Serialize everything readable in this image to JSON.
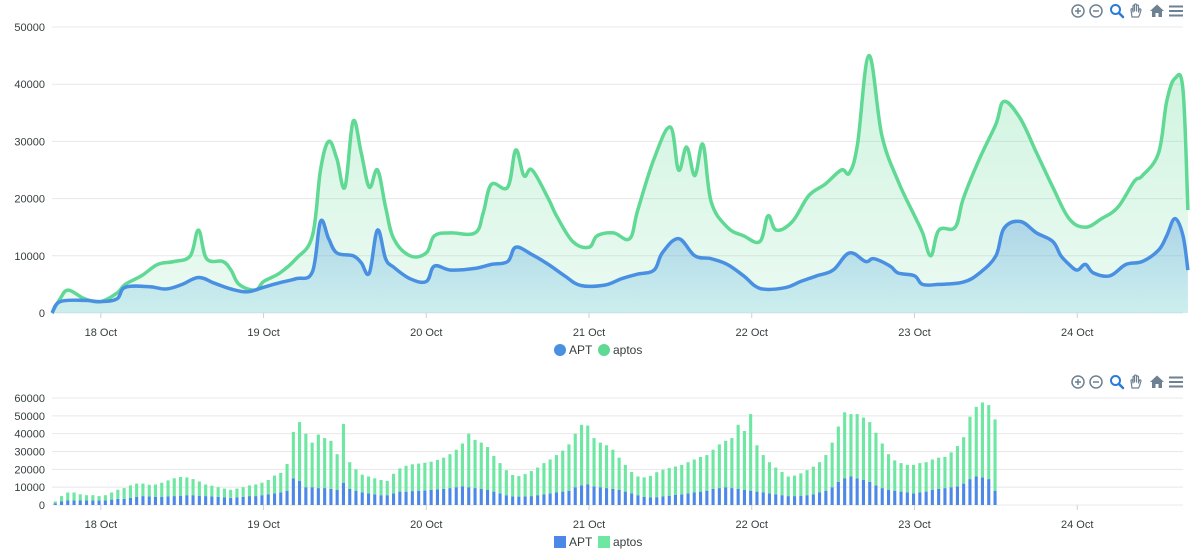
{
  "colors": {
    "apt": "#4a90e2",
    "aptos": "#5fd994",
    "apt_bar": "#4d88e8",
    "aptos_bar": "#6ee7a3",
    "grid": "#e8e8e8",
    "axis_text": "#373d3f",
    "icon": "#6e8192"
  },
  "toolbar": {
    "icons": [
      "zoom-in-icon",
      "zoom-out-icon",
      "selection-zoom-icon",
      "pan-hand-icon",
      "reset-home-icon",
      "menu-icon"
    ]
  },
  "chart_data": [
    {
      "type": "area",
      "title": "",
      "xlabel": "",
      "ylabel": "",
      "x_ticks": [
        "18 Oct",
        "19 Oct",
        "20 Oct",
        "21 Oct",
        "22 Oct",
        "23 Oct",
        "24 Oct"
      ],
      "y_ticks": [
        "0",
        "10000",
        "20000",
        "30000",
        "40000",
        "50000"
      ],
      "ylim": [
        0,
        50000
      ],
      "xlim_days": [
        -0.3,
        6.65
      ],
      "grid": true,
      "legend": "bottom-center",
      "series": [
        {
          "name": "APT",
          "color": "#4a90e2",
          "points": [
            [
              -0.3,
              0
            ],
            [
              -0.25,
              2000
            ],
            [
              -0.1,
              2200
            ],
            [
              0.0,
              2000
            ],
            [
              0.1,
              2500
            ],
            [
              0.15,
              4500
            ],
            [
              0.3,
              4600
            ],
            [
              0.4,
              4200
            ],
            [
              0.5,
              5000
            ],
            [
              0.6,
              6200
            ],
            [
              0.7,
              5200
            ],
            [
              0.8,
              4200
            ],
            [
              0.9,
              3700
            ],
            [
              1.0,
              4500
            ],
            [
              1.1,
              5300
            ],
            [
              1.2,
              6000
            ],
            [
              1.3,
              7200
            ],
            [
              1.35,
              16000
            ],
            [
              1.4,
              13000
            ],
            [
              1.45,
              10500
            ],
            [
              1.55,
              10000
            ],
            [
              1.6,
              8800
            ],
            [
              1.65,
              7000
            ],
            [
              1.7,
              14500
            ],
            [
              1.75,
              9500
            ],
            [
              1.8,
              8000
            ],
            [
              1.9,
              6000
            ],
            [
              2.0,
              5500
            ],
            [
              2.05,
              8200
            ],
            [
              2.15,
              7500
            ],
            [
              2.3,
              7800
            ],
            [
              2.4,
              8500
            ],
            [
              2.5,
              9000
            ],
            [
              2.55,
              11500
            ],
            [
              2.65,
              10200
            ],
            [
              2.75,
              8500
            ],
            [
              2.85,
              6500
            ],
            [
              2.95,
              4800
            ],
            [
              3.1,
              4900
            ],
            [
              3.2,
              6000
            ],
            [
              3.3,
              6800
            ],
            [
              3.4,
              7500
            ],
            [
              3.45,
              10500
            ],
            [
              3.55,
              13000
            ],
            [
              3.65,
              10000
            ],
            [
              3.75,
              9500
            ],
            [
              3.85,
              8500
            ],
            [
              3.95,
              6500
            ],
            [
              4.05,
              4300
            ],
            [
              4.2,
              4400
            ],
            [
              4.3,
              5500
            ],
            [
              4.4,
              6500
            ],
            [
              4.5,
              7500
            ],
            [
              4.6,
              10500
            ],
            [
              4.7,
              9000
            ],
            [
              4.75,
              9500
            ],
            [
              4.85,
              8200
            ],
            [
              4.9,
              7000
            ],
            [
              5.0,
              6500
            ],
            [
              5.05,
              5000
            ],
            [
              5.15,
              5000
            ],
            [
              5.3,
              5400
            ],
            [
              5.4,
              7000
            ],
            [
              5.5,
              10000
            ],
            [
              5.55,
              14800
            ],
            [
              5.65,
              16000
            ],
            [
              5.75,
              14000
            ],
            [
              5.85,
              12500
            ],
            [
              5.9,
              10000
            ],
            [
              5.95,
              8500
            ],
            [
              6.0,
              7500
            ],
            [
              6.05,
              8500
            ],
            [
              6.1,
              7000
            ],
            [
              6.2,
              6500
            ],
            [
              6.3,
              8500
            ],
            [
              6.4,
              9000
            ],
            [
              6.5,
              11000
            ],
            [
              6.55,
              13500
            ],
            [
              6.6,
              16500
            ],
            [
              6.65,
              13500
            ],
            [
              6.68,
              7500
            ]
          ]
        },
        {
          "name": "aptos",
          "color": "#5fd994",
          "points": [
            [
              -0.3,
              0
            ],
            [
              -0.25,
              2500
            ],
            [
              -0.2,
              4000
            ],
            [
              -0.1,
              2500
            ],
            [
              0.0,
              2000
            ],
            [
              0.1,
              3500
            ],
            [
              0.15,
              5000
            ],
            [
              0.25,
              6500
            ],
            [
              0.35,
              8500
            ],
            [
              0.45,
              9000
            ],
            [
              0.55,
              10000
            ],
            [
              0.6,
              14500
            ],
            [
              0.65,
              9500
            ],
            [
              0.75,
              9000
            ],
            [
              0.8,
              7500
            ],
            [
              0.85,
              5000
            ],
            [
              0.95,
              4000
            ],
            [
              1.0,
              5500
            ],
            [
              1.1,
              7000
            ],
            [
              1.2,
              9500
            ],
            [
              1.3,
              13500
            ],
            [
              1.35,
              25000
            ],
            [
              1.4,
              30000
            ],
            [
              1.45,
              27000
            ],
            [
              1.5,
              22000
            ],
            [
              1.55,
              33500
            ],
            [
              1.6,
              28000
            ],
            [
              1.65,
              22000
            ],
            [
              1.7,
              25000
            ],
            [
              1.75,
              18500
            ],
            [
              1.8,
              13000
            ],
            [
              1.9,
              10000
            ],
            [
              2.0,
              10500
            ],
            [
              2.05,
              13500
            ],
            [
              2.15,
              14000
            ],
            [
              2.3,
              14000
            ],
            [
              2.35,
              17500
            ],
            [
              2.4,
              22500
            ],
            [
              2.5,
              22000
            ],
            [
              2.55,
              28500
            ],
            [
              2.6,
              24000
            ],
            [
              2.65,
              25000
            ],
            [
              2.75,
              20000
            ],
            [
              2.8,
              17000
            ],
            [
              2.9,
              12500
            ],
            [
              3.0,
              11500
            ],
            [
              3.05,
              13500
            ],
            [
              3.15,
              14000
            ],
            [
              3.25,
              13000
            ],
            [
              3.3,
              18000
            ],
            [
              3.4,
              27000
            ],
            [
              3.5,
              32500
            ],
            [
              3.55,
              25000
            ],
            [
              3.6,
              29000
            ],
            [
              3.65,
              24000
            ],
            [
              3.7,
              29500
            ],
            [
              3.75,
              19500
            ],
            [
              3.85,
              15000
            ],
            [
              3.95,
              13500
            ],
            [
              4.05,
              12500
            ],
            [
              4.1,
              17000
            ],
            [
              4.15,
              14500
            ],
            [
              4.25,
              16000
            ],
            [
              4.35,
              20500
            ],
            [
              4.45,
              22500
            ],
            [
              4.55,
              25000
            ],
            [
              4.6,
              24500
            ],
            [
              4.65,
              29500
            ],
            [
              4.72,
              45000
            ],
            [
              4.8,
              31000
            ],
            [
              4.9,
              23000
            ],
            [
              5.0,
              17000
            ],
            [
              5.05,
              14000
            ],
            [
              5.1,
              10000
            ],
            [
              5.15,
              14500
            ],
            [
              5.25,
              15000
            ],
            [
              5.3,
              20000
            ],
            [
              5.4,
              27000
            ],
            [
              5.5,
              33000
            ],
            [
              5.55,
              37000
            ],
            [
              5.65,
              34000
            ],
            [
              5.75,
              28000
            ],
            [
              5.85,
              22000
            ],
            [
              5.95,
              16500
            ],
            [
              6.05,
              15000
            ],
            [
              6.15,
              16500
            ],
            [
              6.25,
              18500
            ],
            [
              6.35,
              23000
            ],
            [
              6.4,
              24000
            ],
            [
              6.5,
              28000
            ],
            [
              6.55,
              37000
            ],
            [
              6.6,
              41000
            ],
            [
              6.65,
              39000
            ],
            [
              6.68,
              18000
            ]
          ]
        }
      ]
    },
    {
      "type": "bar",
      "stacked": true,
      "title": "",
      "xlabel": "",
      "ylabel": "",
      "x_ticks": [
        "18 Oct",
        "19 Oct",
        "20 Oct",
        "21 Oct",
        "22 Oct",
        "23 Oct",
        "24 Oct"
      ],
      "y_ticks": [
        "0",
        "10000",
        "20000",
        "30000",
        "40000",
        "50000",
        "60000"
      ],
      "ylim": [
        0,
        60000
      ],
      "xlim_days": [
        -0.3,
        6.65
      ],
      "grid": true,
      "legend": "bottom-center",
      "bar_start_day": -0.28,
      "bar_step_days": 0.0385,
      "series": [
        {
          "name": "APT",
          "color": "#4d88e8",
          "values": [
            1000,
            2000,
            2500,
            2500,
            2500,
            2500,
            2500,
            2500,
            2500,
            3000,
            3500,
            3500,
            4000,
            4500,
            5000,
            4800,
            4500,
            4500,
            4800,
            5000,
            5200,
            5500,
            5500,
            5200,
            5000,
            4800,
            4500,
            4200,
            4000,
            4200,
            4500,
            5000,
            5000,
            5500,
            6000,
            6500,
            7000,
            8000,
            15000,
            13500,
            10000,
            10000,
            9500,
            9500,
            9000,
            8500,
            12500,
            9000,
            8000,
            7000,
            6500,
            6000,
            5500,
            5500,
            6500,
            7500,
            7500,
            7800,
            8000,
            8200,
            8500,
            8800,
            9000,
            9500,
            10000,
            10500,
            10000,
            9500,
            9000,
            8500,
            7500,
            6500,
            5500,
            4800,
            4700,
            4800,
            5000,
            5500,
            6000,
            6500,
            7000,
            7500,
            8000,
            10000,
            11000,
            11500,
            10500,
            10000,
            9500,
            9000,
            8500,
            7500,
            6500,
            5500,
            4500,
            4300,
            4400,
            4800,
            5200,
            5600,
            6000,
            6500,
            7000,
            7500,
            8000,
            9000,
            9500,
            10000,
            9500,
            9000,
            8500,
            8000,
            7500,
            7000,
            6500,
            6000,
            5500,
            5000,
            5000,
            5200,
            5500,
            6000,
            7000,
            8000,
            10000,
            13000,
            15000,
            16000,
            15000,
            14000,
            13000,
            11000,
            9500,
            8500,
            8000,
            7500,
            7000,
            6500,
            7000,
            7500,
            8500,
            9000,
            9500,
            10000,
            10500,
            12000,
            14500,
            16000,
            15500,
            14500,
            8000
          ]
        },
        {
          "name": "aptos",
          "color": "#6ee7a3",
          "values": [
            1000,
            3000,
            4500,
            4500,
            3500,
            3000,
            3000,
            2500,
            3000,
            4000,
            5000,
            6000,
            7000,
            7500,
            7000,
            6500,
            7000,
            8000,
            9000,
            10000,
            10500,
            10000,
            9000,
            8000,
            6500,
            6000,
            5500,
            5000,
            4500,
            5000,
            5500,
            6000,
            6500,
            7000,
            8000,
            10000,
            11000,
            15000,
            26000,
            33000,
            30000,
            25000,
            30000,
            28000,
            27000,
            20000,
            33000,
            15000,
            12000,
            10000,
            9500,
            9000,
            8500,
            8000,
            11000,
            13000,
            14500,
            15000,
            15200,
            15500,
            15800,
            16500,
            17500,
            19000,
            21000,
            24000,
            30000,
            27000,
            26000,
            24000,
            20000,
            17000,
            14000,
            12000,
            11500,
            12500,
            14000,
            15500,
            17500,
            19000,
            21000,
            23000,
            26000,
            30000,
            34000,
            33000,
            27000,
            25000,
            24000,
            22000,
            18000,
            15000,
            12000,
            10500,
            11000,
            12000,
            14000,
            15000,
            15500,
            16000,
            16500,
            17500,
            18500,
            19500,
            20000,
            22000,
            24500,
            26000,
            28000,
            36000,
            33000,
            43000,
            26000,
            21000,
            17500,
            15000,
            13000,
            11000,
            11500,
            12500,
            14000,
            15500,
            17000,
            20000,
            25000,
            31000,
            37000,
            35000,
            36000,
            35000,
            33500,
            29500,
            25000,
            20000,
            17000,
            16000,
            15500,
            16000,
            16500,
            16500,
            17000,
            17500,
            17500,
            19500,
            22500,
            26000,
            35000,
            39000,
            42000,
            41500,
            40000,
            18000
          ]
        }
      ]
    }
  ]
}
